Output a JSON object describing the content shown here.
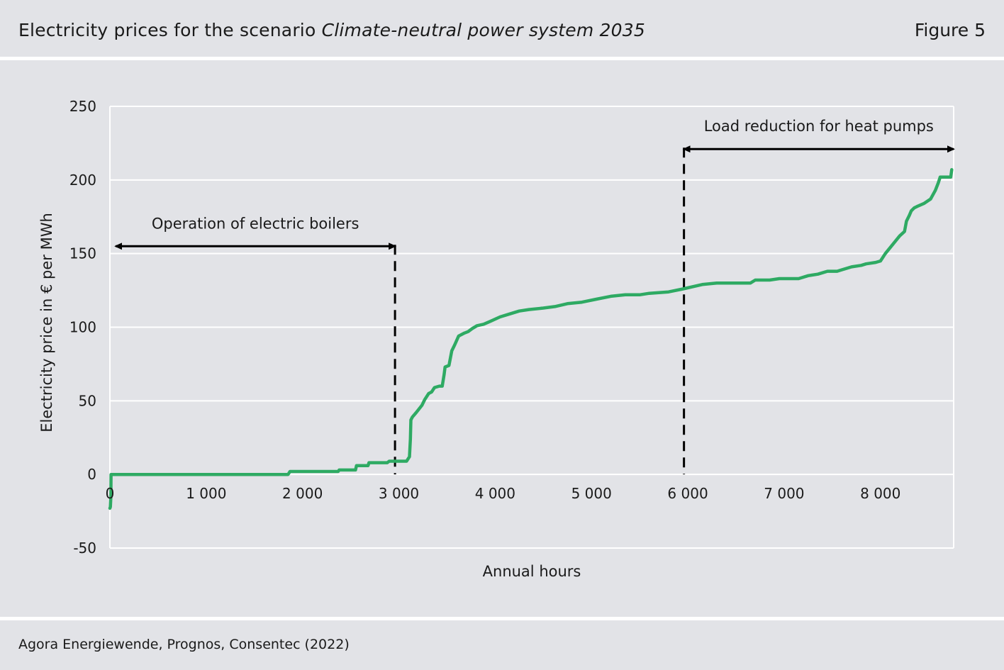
{
  "header": {
    "title_prefix": "Electricity prices for the scenario ",
    "title_italic": "Climate-neutral power system 2035",
    "figure_label": "Figure 5"
  },
  "footer": {
    "source": "Agora Energiewende, Prognos, Consentec (2022)"
  },
  "colors": {
    "background": "#e2e3e7",
    "series": "#2eaa63",
    "grid": "#ffffff",
    "annotation": "#000000"
  },
  "chart_data": {
    "type": "line",
    "title": "",
    "xlabel": "Annual hours",
    "ylabel": "Electricity price in € per MWh",
    "xlim": [
      0,
      8760
    ],
    "ylim": [
      -50,
      250
    ],
    "xticks": [
      {
        "value": 0,
        "label": "0"
      },
      {
        "value": 1000,
        "label": "1 000"
      },
      {
        "value": 2000,
        "label": "2 000"
      },
      {
        "value": 3000,
        "label": "3 000"
      },
      {
        "value": 4000,
        "label": "4 000"
      },
      {
        "value": 5000,
        "label": "5 000"
      },
      {
        "value": 6000,
        "label": "6 000"
      },
      {
        "value": 7000,
        "label": "7 000"
      },
      {
        "value": 8000,
        "label": "8 000"
      }
    ],
    "yticks": [
      {
        "value": 250,
        "label": "250"
      },
      {
        "value": 200,
        "label": "200"
      },
      {
        "value": 150,
        "label": "150"
      },
      {
        "value": 100,
        "label": "100"
      },
      {
        "value": 50,
        "label": "50"
      },
      {
        "value": 0,
        "label": "0"
      },
      {
        "value": -50,
        "label": "-50"
      }
    ],
    "grid": true,
    "legend": "none",
    "series": [
      {
        "color": "#2eaa63",
        "points": [
          [
            0,
            -23
          ],
          [
            5,
            -22
          ],
          [
            10,
            -15
          ],
          [
            12,
            0
          ],
          [
            1850,
            0
          ],
          [
            1870,
            2
          ],
          [
            2370,
            2
          ],
          [
            2380,
            3
          ],
          [
            2550,
            3
          ],
          [
            2560,
            6
          ],
          [
            2680,
            6
          ],
          [
            2690,
            8
          ],
          [
            2880,
            8
          ],
          [
            2900,
            9
          ],
          [
            3080,
            9
          ],
          [
            3110,
            12
          ],
          [
            3120,
            24
          ],
          [
            3125,
            37
          ],
          [
            3140,
            39
          ],
          [
            3180,
            42
          ],
          [
            3240,
            47
          ],
          [
            3270,
            51
          ],
          [
            3310,
            55
          ],
          [
            3340,
            56
          ],
          [
            3370,
            59
          ],
          [
            3420,
            60
          ],
          [
            3450,
            60
          ],
          [
            3470,
            68
          ],
          [
            3480,
            73
          ],
          [
            3520,
            74
          ],
          [
            3550,
            84
          ],
          [
            3580,
            88
          ],
          [
            3620,
            94
          ],
          [
            3680,
            96
          ],
          [
            3720,
            97
          ],
          [
            3760,
            99
          ],
          [
            3810,
            101
          ],
          [
            3880,
            102
          ],
          [
            3950,
            104
          ],
          [
            4050,
            107
          ],
          [
            4150,
            109
          ],
          [
            4250,
            111
          ],
          [
            4350,
            112
          ],
          [
            4500,
            113
          ],
          [
            4620,
            114
          ],
          [
            4750,
            116
          ],
          [
            4900,
            117
          ],
          [
            5050,
            119
          ],
          [
            5200,
            121
          ],
          [
            5350,
            122
          ],
          [
            5500,
            122
          ],
          [
            5600,
            123
          ],
          [
            5800,
            124
          ],
          [
            5950,
            126
          ],
          [
            6150,
            129
          ],
          [
            6300,
            130
          ],
          [
            6500,
            130
          ],
          [
            6650,
            130
          ],
          [
            6700,
            132
          ],
          [
            6850,
            132
          ],
          [
            6950,
            133
          ],
          [
            7150,
            133
          ],
          [
            7250,
            135
          ],
          [
            7350,
            136
          ],
          [
            7450,
            138
          ],
          [
            7550,
            138
          ],
          [
            7600,
            139
          ],
          [
            7700,
            141
          ],
          [
            7800,
            142
          ],
          [
            7850,
            143
          ],
          [
            7950,
            144
          ],
          [
            8000,
            145
          ],
          [
            8050,
            150
          ],
          [
            8100,
            154
          ],
          [
            8150,
            158
          ],
          [
            8200,
            162
          ],
          [
            8250,
            165
          ],
          [
            8270,
            172
          ],
          [
            8300,
            176
          ],
          [
            8320,
            179
          ],
          [
            8350,
            181
          ],
          [
            8380,
            182
          ],
          [
            8450,
            184
          ],
          [
            8520,
            187
          ],
          [
            8570,
            193
          ],
          [
            8600,
            198
          ],
          [
            8620,
            202
          ],
          [
            8730,
            202
          ],
          [
            8740,
            207
          ]
        ]
      }
    ],
    "annotations": [
      {
        "text": "Operation of electric boilers",
        "x_from": 60,
        "x_to": 2960,
        "y": 155,
        "marker_x": 2960
      },
      {
        "text": "Load reduction for heat pumps",
        "x_from": 5960,
        "x_to": 8760,
        "y": 221,
        "marker_x": 5960
      }
    ]
  }
}
